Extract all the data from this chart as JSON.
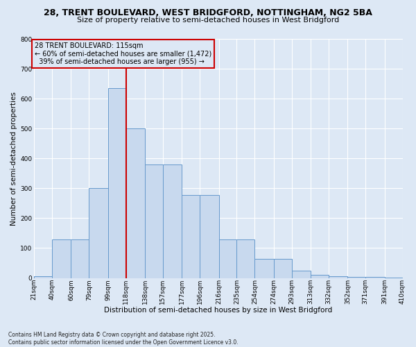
{
  "title_line1": "28, TRENT BOULEVARD, WEST BRIDGFORD, NOTTINGHAM, NG2 5BA",
  "title_line2": "Size of property relative to semi-detached houses in West Bridgford",
  "xlabel": "Distribution of semi-detached houses by size in West Bridgford",
  "ylabel": "Number of semi-detached properties",
  "footnote": "Contains HM Land Registry data © Crown copyright and database right 2025.\nContains public sector information licensed under the Open Government Licence v3.0.",
  "property_label": "28 TRENT BOULEVARD: 115sqm",
  "pct_smaller": 60,
  "pct_larger": 39,
  "count_smaller": 1472,
  "count_larger": 955,
  "bin_labels": [
    "21sqm",
    "40sqm",
    "60sqm",
    "79sqm",
    "99sqm",
    "118sqm",
    "138sqm",
    "157sqm",
    "177sqm",
    "196sqm",
    "216sqm",
    "235sqm",
    "254sqm",
    "274sqm",
    "293sqm",
    "313sqm",
    "332sqm",
    "352sqm",
    "371sqm",
    "391sqm",
    "410sqm"
  ],
  "bin_edges": [
    21,
    40,
    60,
    79,
    99,
    118,
    138,
    157,
    177,
    196,
    216,
    235,
    254,
    274,
    293,
    313,
    332,
    352,
    371,
    391,
    410
  ],
  "bar_heights": [
    7,
    128,
    128,
    300,
    635,
    500,
    380,
    380,
    278,
    278,
    130,
    130,
    65,
    65,
    25,
    10,
    5,
    3,
    3,
    1
  ],
  "bar_color": "#c8d9ee",
  "bar_edge_color": "#6699cc",
  "vline_color": "#cc0000",
  "vline_x": 118,
  "annotation_box_edge_color": "#cc0000",
  "background_color": "#dde8f5",
  "ylim": [
    0,
    800
  ],
  "yticks": [
    0,
    100,
    200,
    300,
    400,
    500,
    600,
    700,
    800
  ],
  "grid_color": "#ffffff",
  "title_fontsize": 9,
  "subtitle_fontsize": 8,
  "axis_label_fontsize": 7.5,
  "tick_fontsize": 6.5,
  "annotation_fontsize": 7,
  "footnote_fontsize": 5.5
}
